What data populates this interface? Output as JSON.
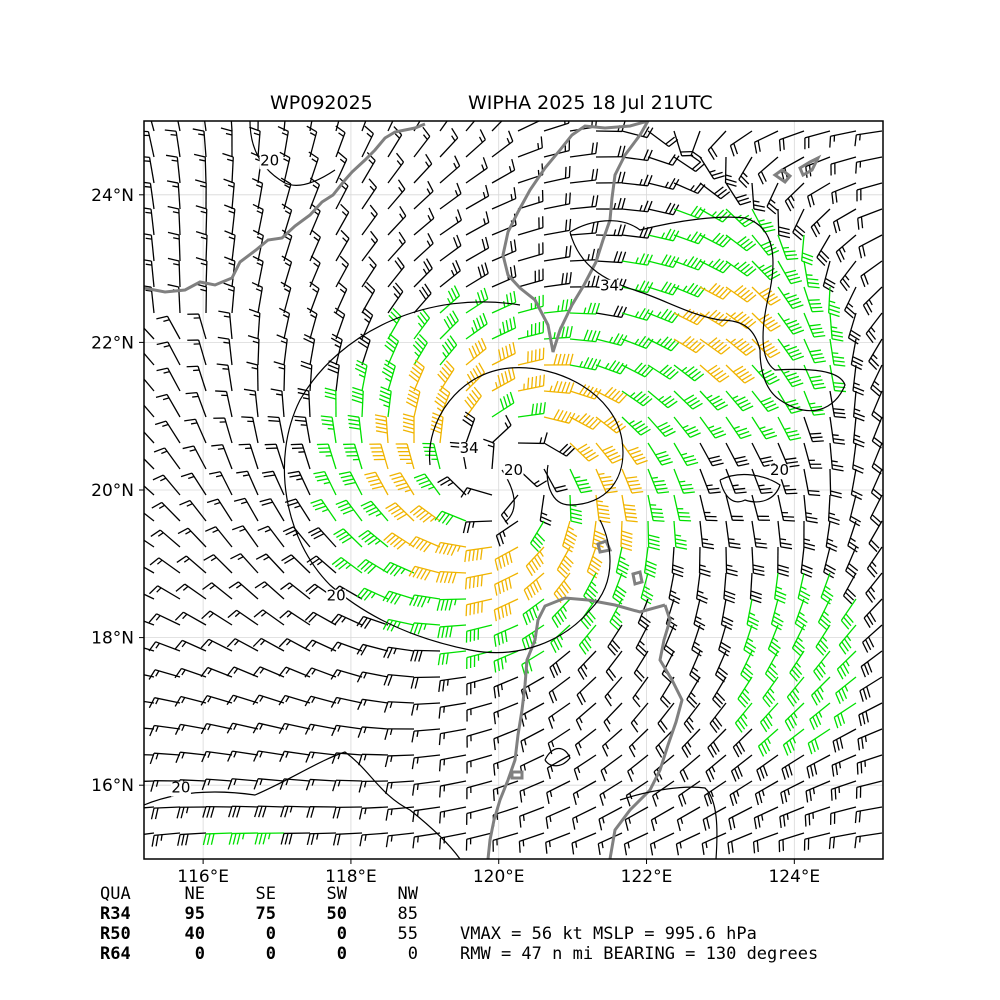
{
  "header": {
    "storm_id": "WP092025",
    "storm_title": "WIPHA 2025 18 Jul 21UTC"
  },
  "map": {
    "lon_range": [
      115.2,
      125.2
    ],
    "lat_range": [
      15.0,
      25.0
    ],
    "lon_ticks": [
      {
        "value": 116,
        "label": "116°E"
      },
      {
        "value": 118,
        "label": "118°E"
      },
      {
        "value": 120,
        "label": "120°E"
      },
      {
        "value": 122,
        "label": "122°E"
      },
      {
        "value": 124,
        "label": "124°E"
      }
    ],
    "lat_ticks": [
      {
        "value": 16,
        "label": "16°N"
      },
      {
        "value": 18,
        "label": "18°N"
      },
      {
        "value": 20,
        "label": "20°N"
      },
      {
        "value": 22,
        "label": "22°N"
      },
      {
        "value": 24,
        "label": "24°N"
      }
    ],
    "grid": true,
    "center": {
      "lon": 120.1,
      "lat": 20.2
    },
    "wind_barb_colors": {
      "below_34": "#000000",
      "gale_34_to_50": "#00e000",
      "storm_50_to_64": "#f0b400",
      "hurricane_64": "#f07000"
    },
    "coastline_color": "#808080",
    "contour_labels": [
      {
        "text": "20",
        "lon": 116.9,
        "lat": 24.4
      },
      {
        "text": "34",
        "lon": 121.5,
        "lat": 22.7
      },
      {
        "text": "34",
        "lon": 119.6,
        "lat": 20.5
      },
      {
        "text": "20",
        "lon": 120.2,
        "lat": 20.2
      },
      {
        "text": "20",
        "lon": 123.8,
        "lat": 20.2
      },
      {
        "text": "20",
        "lon": 117.8,
        "lat": 18.5
      },
      {
        "text": "20",
        "lon": 115.7,
        "lat": 15.9
      }
    ]
  },
  "table": {
    "headers": [
      "QUA",
      "NE",
      "SE",
      "SW",
      "NW"
    ],
    "rows": [
      {
        "label": "R34",
        "values": [
          "95",
          "75",
          "50",
          "85"
        ]
      },
      {
        "label": "R50",
        "values": [
          "40",
          "0",
          "0",
          "55"
        ]
      },
      {
        "label": "R64",
        "values": [
          "0",
          "0",
          "0",
          "0"
        ]
      }
    ]
  },
  "stats": {
    "line1": "VMAX =  56 kt MSLP = 995.6 hPa",
    "line2": "RMW =  47 n mi BEARING = 130 degrees"
  }
}
